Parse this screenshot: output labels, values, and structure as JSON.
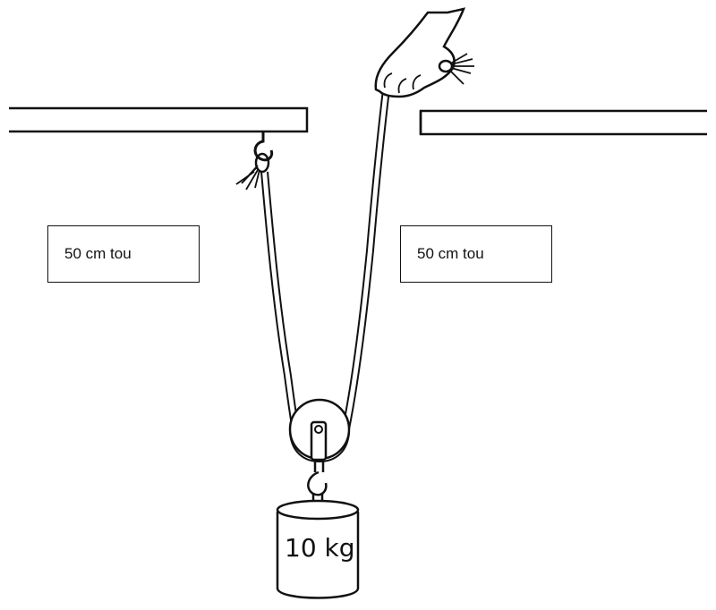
{
  "labels": {
    "left_distance": "50 cm tou",
    "right_distance": "50 cm tou"
  },
  "weight": {
    "label": "10 kg"
  },
  "colors": {
    "ink": "#111111",
    "background": "#ffffff"
  }
}
